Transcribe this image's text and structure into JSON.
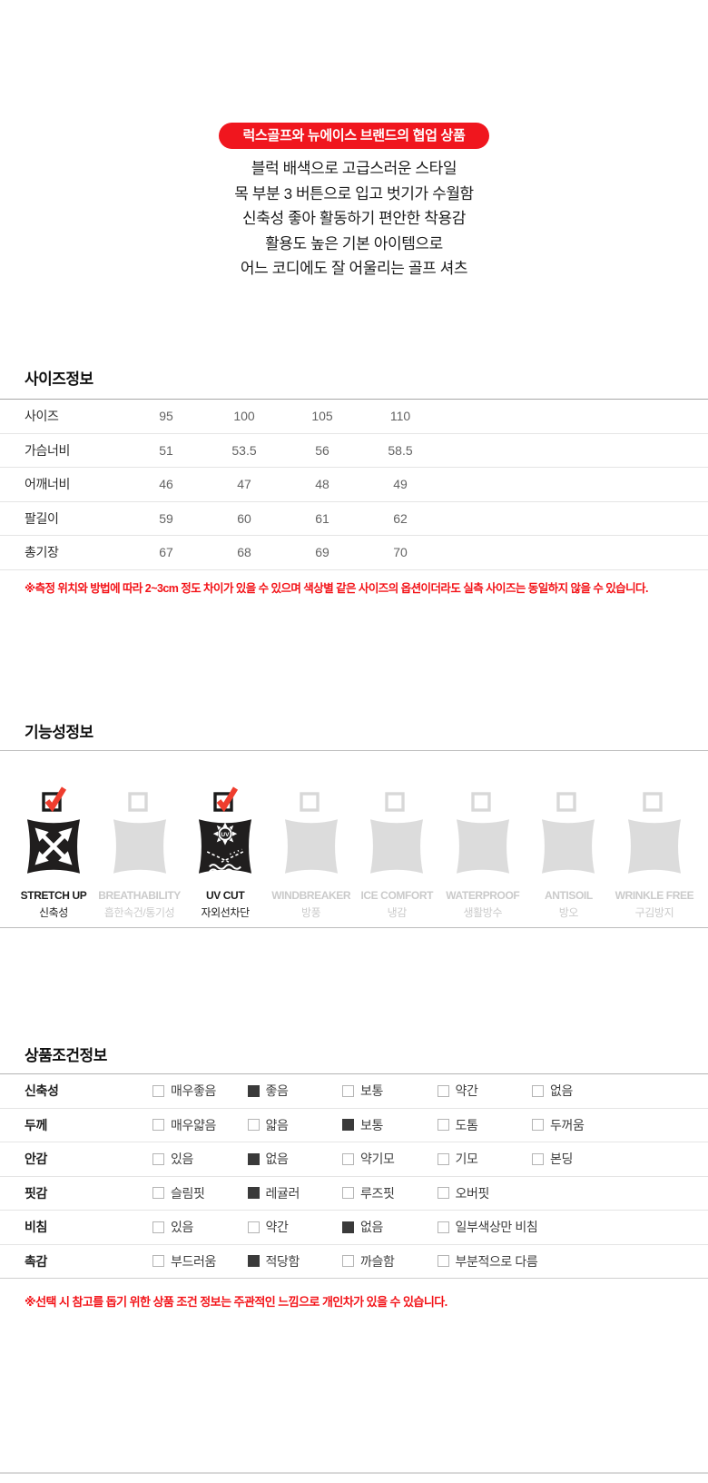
{
  "badge": {
    "label": "럭스골프와 뉴에이스 브랜드의 협업 상품",
    "bg_color": "#f0161e",
    "text_color": "#ffffff"
  },
  "description_lines": [
    "블럭 배색으로 고급스러운 스타일",
    "목 부분 3 버튼으로 입고 벗기가 수월함",
    "신축성 좋아 활동하기 편안한 착용감",
    "활용도 높은 기본 아이템으로",
    "어느 코디에도 잘 어울리는 골프 셔츠"
  ],
  "size_section": {
    "title": "사이즈정보",
    "table": {
      "rows": [
        {
          "label": "사이즈",
          "values": [
            "95",
            "100",
            "105",
            "110"
          ]
        },
        {
          "label": "가슴너비",
          "values": [
            "51",
            "53.5",
            "56",
            "58.5"
          ]
        },
        {
          "label": "어깨너비",
          "values": [
            "46",
            "47",
            "48",
            "49"
          ]
        },
        {
          "label": "팔길이",
          "values": [
            "59",
            "60",
            "61",
            "62"
          ]
        },
        {
          "label": "총기장",
          "values": [
            "67",
            "68",
            "69",
            "70"
          ]
        }
      ]
    },
    "note": "※측정 위치와 방법에 따라 2~3cm 정도 차이가 있을 수 있으며 색상별 같은 사이즈의 옵션이더라도 실측 사이즈는 동일하지 않을 수 있습니다."
  },
  "function_section": {
    "title": "기능성정보",
    "check_color": "#ef3d2e",
    "active_swatch_color": "#201e1e",
    "inactive_swatch_color": "#dcdcdc",
    "items": [
      {
        "name_en": "STRETCH UP",
        "name_ko": "신축성",
        "checked": true,
        "icon": "expand-arrows-icon"
      },
      {
        "name_en": "BREATHABILITY",
        "name_ko": "흡한속건/통기성",
        "checked": false,
        "icon": ""
      },
      {
        "name_en": "UV CUT",
        "name_ko": "자외선차단",
        "checked": true,
        "icon": "uv-sun-icon"
      },
      {
        "name_en": "WINDBREAKER",
        "name_ko": "방풍",
        "checked": false,
        "icon": ""
      },
      {
        "name_en": "ICE COMFORT",
        "name_ko": "냉감",
        "checked": false,
        "icon": ""
      },
      {
        "name_en": "WATERPROOF",
        "name_ko": "생활방수",
        "checked": false,
        "icon": ""
      },
      {
        "name_en": "ANTISOIL",
        "name_ko": "방오",
        "checked": false,
        "icon": ""
      },
      {
        "name_en": "WRINKLE FREE",
        "name_ko": "구김방지",
        "checked": false,
        "icon": ""
      }
    ]
  },
  "condition_section": {
    "title": "상품조건정보",
    "rows": [
      {
        "label": "신축성",
        "options": [
          {
            "text": "매우좋음",
            "checked": false
          },
          {
            "text": "좋음",
            "checked": true
          },
          {
            "text": "보통",
            "checked": false
          },
          {
            "text": "약간",
            "checked": false
          },
          {
            "text": "없음",
            "checked": false
          }
        ]
      },
      {
        "label": "두께",
        "options": [
          {
            "text": "매우얇음",
            "checked": false
          },
          {
            "text": "얇음",
            "checked": false
          },
          {
            "text": "보통",
            "checked": true
          },
          {
            "text": "도톰",
            "checked": false
          },
          {
            "text": "두꺼움",
            "checked": false
          }
        ]
      },
      {
        "label": "안감",
        "options": [
          {
            "text": "있음",
            "checked": false
          },
          {
            "text": "없음",
            "checked": true
          },
          {
            "text": "약기모",
            "checked": false
          },
          {
            "text": "기모",
            "checked": false
          },
          {
            "text": "본딩",
            "checked": false
          }
        ]
      },
      {
        "label": "핏감",
        "options": [
          {
            "text": "슬림핏",
            "checked": false
          },
          {
            "text": "레귤러",
            "checked": true
          },
          {
            "text": "루즈핏",
            "checked": false
          },
          {
            "text": "오버핏",
            "checked": false
          }
        ]
      },
      {
        "label": "비침",
        "options": [
          {
            "text": "있음",
            "checked": false
          },
          {
            "text": "약간",
            "checked": false
          },
          {
            "text": "없음",
            "checked": true
          },
          {
            "text": "일부색상만 비침",
            "checked": false
          }
        ]
      },
      {
        "label": "촉감",
        "options": [
          {
            "text": "부드러움",
            "checked": false
          },
          {
            "text": "적당함",
            "checked": true
          },
          {
            "text": "까슬함",
            "checked": false
          },
          {
            "text": "부분적으로 다름",
            "checked": false
          }
        ]
      }
    ],
    "note": "※선택 시 참고를 돕기 위한 상품 조건 정보는 주관적인 느낌으로 개인차가 있을 수 있습니다."
  }
}
